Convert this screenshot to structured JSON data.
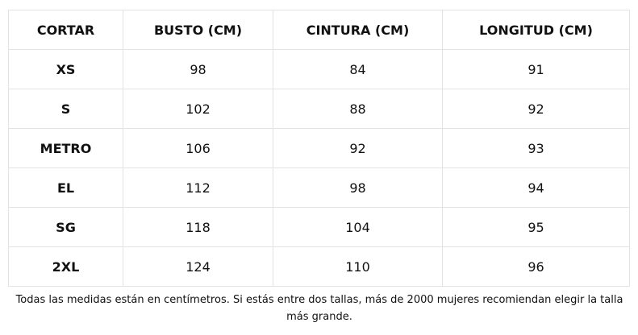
{
  "table": {
    "header": [
      "CORTAR",
      "BUSTO (CM)",
      "CINTURA (CM)",
      "LONGITUD (CM)"
    ],
    "rows": [
      [
        "XS",
        98,
        84,
        91
      ],
      [
        "S",
        102,
        88,
        92
      ],
      [
        "METRO",
        106,
        92,
        93
      ],
      [
        "EL",
        112,
        98,
        94
      ],
      [
        "SG",
        118,
        104,
        95
      ],
      [
        "2XL",
        124,
        110,
        96
      ]
    ]
  },
  "note": "Todas las medidas están en centímetros. Si estás entre dos tallas, más de 2000 mujeres recomiendan elegir la talla más grande."
}
